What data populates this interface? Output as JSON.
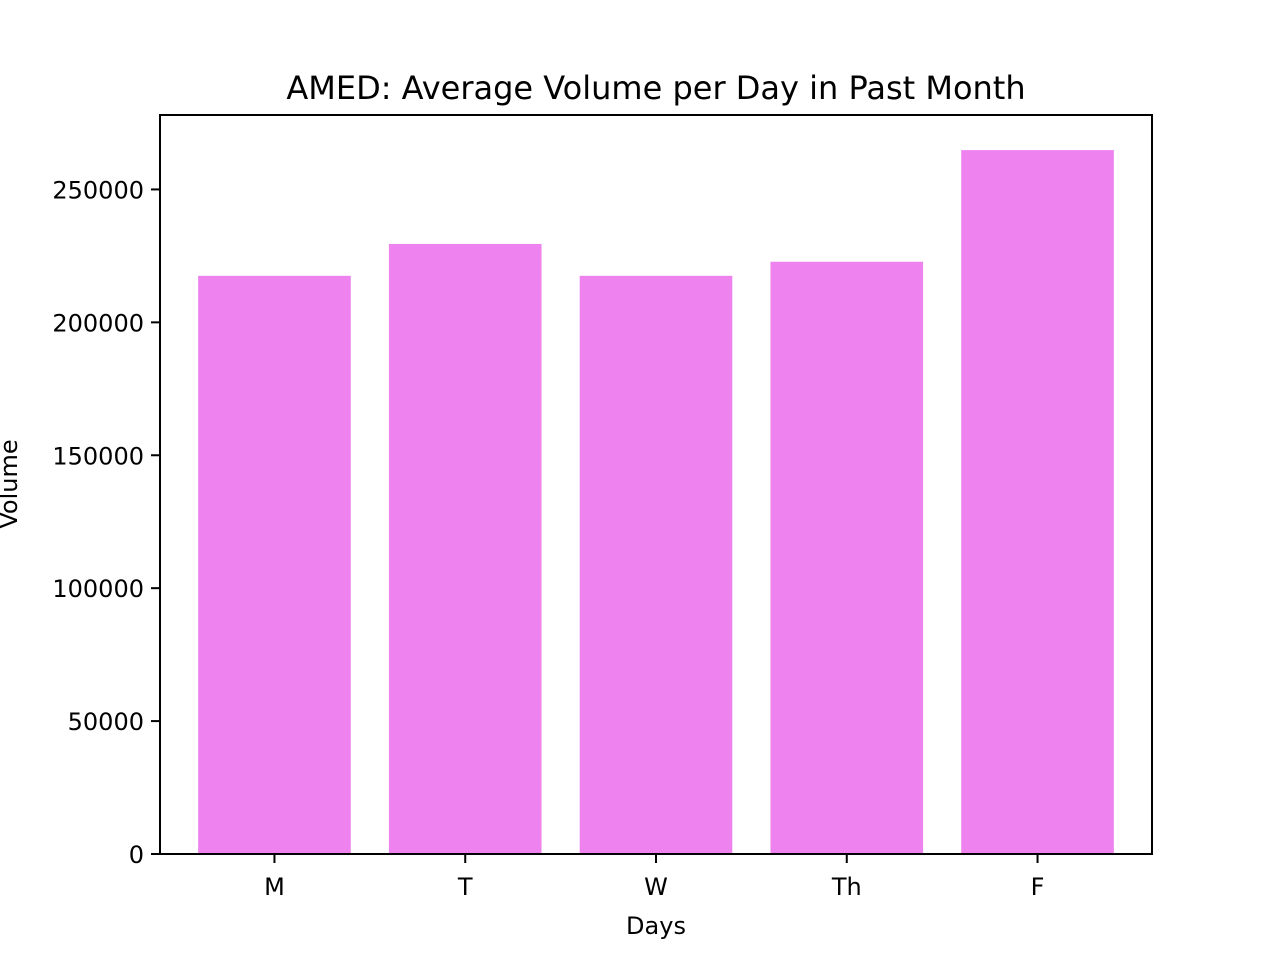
{
  "chart_data": {
    "type": "bar",
    "title": "AMED: Average Volume per Day in Past Month",
    "xlabel": "Days",
    "ylabel": "Volume",
    "categories": [
      "M",
      "T",
      "W",
      "Th",
      "F"
    ],
    "values": [
      217500,
      229500,
      217500,
      222800,
      264800
    ],
    "ylim": [
      0,
      278000
    ],
    "yticks": [
      0,
      50000,
      100000,
      150000,
      200000,
      250000
    ],
    "ytick_labels": [
      "0",
      "50000",
      "100000",
      "150000",
      "200000",
      "250000"
    ],
    "bar_color": "#ee82ee",
    "grid": false,
    "legend": "none"
  }
}
